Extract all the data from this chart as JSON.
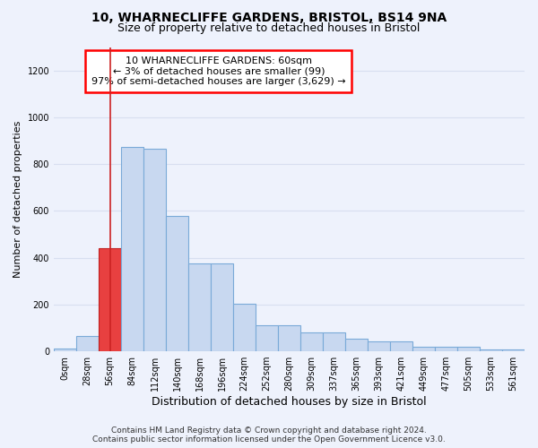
{
  "title1": "10, WHARNECLIFFE GARDENS, BRISTOL, BS14 9NA",
  "title2": "Size of property relative to detached houses in Bristol",
  "xlabel": "Distribution of detached houses by size in Bristol",
  "ylabel": "Number of detached properties",
  "bar_values": [
    10,
    65,
    440,
    875,
    865,
    580,
    375,
    375,
    205,
    110,
    110,
    82,
    82,
    55,
    42,
    42,
    20,
    18,
    18,
    8,
    8
  ],
  "bin_labels": [
    "0sqm",
    "28sqm",
    "56sqm",
    "84sqm",
    "112sqm",
    "140sqm",
    "168sqm",
    "196sqm",
    "224sqm",
    "252sqm",
    "280sqm",
    "309sqm",
    "337sqm",
    "365sqm",
    "393sqm",
    "421sqm",
    "449sqm",
    "477sqm",
    "505sqm",
    "533sqm",
    "561sqm"
  ],
  "bar_color": "#c8d8f0",
  "bar_edge_color": "#7aaad8",
  "highlight_bar_index": 2,
  "highlight_bar_color": "#e84040",
  "highlight_bar_edge_color": "#c02020",
  "vline_x": 2,
  "annotation_box_text": "10 WHARNECLIFFE GARDENS: 60sqm\n← 3% of detached houses are smaller (99)\n97% of semi-detached houses are larger (3,629) →",
  "ylim": [
    0,
    1300
  ],
  "yticks": [
    0,
    200,
    400,
    600,
    800,
    1000,
    1200
  ],
  "footer_line1": "Contains HM Land Registry data © Crown copyright and database right 2024.",
  "footer_line2": "Contains public sector information licensed under the Open Government Licence v3.0.",
  "bg_color": "#eef2fc",
  "plot_bg_color": "#eef2fc",
  "grid_color": "#d8dff0",
  "title1_fontsize": 10,
  "title2_fontsize": 9,
  "xlabel_fontsize": 9,
  "ylabel_fontsize": 8,
  "tick_fontsize": 7,
  "ann_fontsize": 8,
  "footer_fontsize": 6.5
}
